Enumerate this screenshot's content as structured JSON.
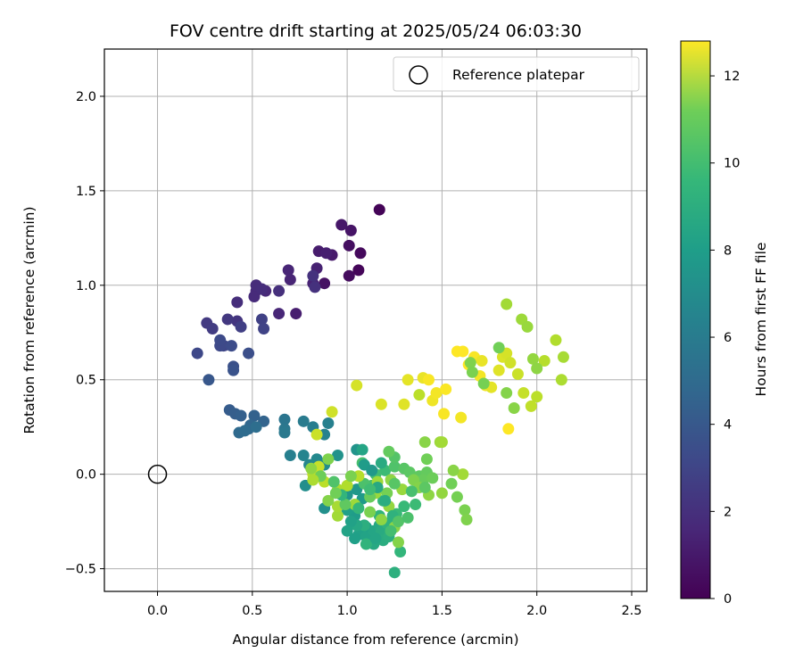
{
  "chart_data": {
    "type": "scatter",
    "title": "FOV centre drift starting at 2025/05/24 06:03:30",
    "xlabel": "Angular distance from reference (arcmin)",
    "ylabel": "Rotation from reference (arcmin)",
    "xlim": [
      -0.28,
      2.58
    ],
    "ylim": [
      -0.62,
      2.25
    ],
    "xticks": [
      0.0,
      0.5,
      1.0,
      1.5,
      2.0,
      2.5
    ],
    "xtick_labels": [
      "0.0",
      "0.5",
      "1.0",
      "1.5",
      "2.0",
      "2.5"
    ],
    "yticks": [
      -0.5,
      0.0,
      0.5,
      1.0,
      1.5,
      2.0
    ],
    "ytick_labels": [
      "−0.5",
      "0.0",
      "0.5",
      "1.0",
      "1.5",
      "2.0"
    ],
    "grid": true,
    "legend": {
      "placement": "top-right",
      "entries": [
        "Reference platepar"
      ]
    },
    "reference_point": {
      "x": 0.0,
      "y": 0.0
    },
    "colorbar": {
      "label": "Hours from first FF file",
      "colormap": "viridis",
      "range": [
        0,
        12.8
      ],
      "ticks": [
        0,
        2,
        4,
        6,
        8,
        10,
        12
      ],
      "tick_labels": [
        "0",
        "2",
        "4",
        "6",
        "8",
        "10",
        "12"
      ]
    },
    "points": [
      [
        1.17,
        1.4,
        0.1
      ],
      [
        1.06,
        1.08,
        0.2
      ],
      [
        1.07,
        1.17,
        0.3
      ],
      [
        1.01,
        1.05,
        0.4
      ],
      [
        1.01,
        1.21,
        0.5
      ],
      [
        0.88,
        1.01,
        0.6
      ],
      [
        1.02,
        1.29,
        0.7
      ],
      [
        0.97,
        1.32,
        0.8
      ],
      [
        0.92,
        1.16,
        0.9
      ],
      [
        0.85,
        1.18,
        1.0
      ],
      [
        0.73,
        0.85,
        1.05
      ],
      [
        0.89,
        1.17,
        1.1
      ],
      [
        0.84,
        1.09,
        1.2
      ],
      [
        0.82,
        1.01,
        1.25
      ],
      [
        0.7,
        1.03,
        1.3
      ],
      [
        0.69,
        1.08,
        1.35
      ],
      [
        0.64,
        0.85,
        1.4
      ],
      [
        0.57,
        0.97,
        1.45
      ],
      [
        0.52,
        0.97,
        1.5
      ],
      [
        0.51,
        0.94,
        1.55
      ],
      [
        0.52,
        1.0,
        1.6
      ],
      [
        0.55,
        0.98,
        1.65
      ],
      [
        0.42,
        0.91,
        1.7
      ],
      [
        0.64,
        0.97,
        1.75
      ],
      [
        0.83,
        0.99,
        1.8
      ],
      [
        0.82,
        1.05,
        1.85
      ],
      [
        0.42,
        0.81,
        2.0
      ],
      [
        0.37,
        0.82,
        2.1
      ],
      [
        0.26,
        0.8,
        2.2
      ],
      [
        0.29,
        0.77,
        2.3
      ],
      [
        0.44,
        0.78,
        2.4
      ],
      [
        0.55,
        0.82,
        2.5
      ],
      [
        0.56,
        0.77,
        2.6
      ],
      [
        0.35,
        0.68,
        2.7
      ],
      [
        0.21,
        0.64,
        2.8
      ],
      [
        0.33,
        0.68,
        2.85
      ],
      [
        0.33,
        0.71,
        2.9
      ],
      [
        0.39,
        0.68,
        3.0
      ],
      [
        0.48,
        0.64,
        3.1
      ],
      [
        0.4,
        0.57,
        3.2
      ],
      [
        0.4,
        0.55,
        3.3
      ],
      [
        0.27,
        0.5,
        3.5
      ],
      [
        0.38,
        0.34,
        3.7
      ],
      [
        0.41,
        0.32,
        3.8
      ],
      [
        0.44,
        0.31,
        3.9
      ],
      [
        0.51,
        0.31,
        4.0
      ],
      [
        0.56,
        0.28,
        4.1
      ],
      [
        0.49,
        0.26,
        4.2
      ],
      [
        0.48,
        0.24,
        4.3
      ],
      [
        0.43,
        0.22,
        4.4
      ],
      [
        0.46,
        0.23,
        4.5
      ],
      [
        0.52,
        0.25,
        4.6
      ],
      [
        0.67,
        0.29,
        5.0
      ],
      [
        0.67,
        0.24,
        5.1
      ],
      [
        0.67,
        0.22,
        5.2
      ],
      [
        0.77,
        0.28,
        5.3
      ],
      [
        0.82,
        0.25,
        5.4
      ],
      [
        0.7,
        0.1,
        5.5
      ],
      [
        0.9,
        0.27,
        5.6
      ],
      [
        0.88,
        0.21,
        5.7
      ],
      [
        0.77,
        0.1,
        5.8
      ],
      [
        0.8,
        0.05,
        5.9
      ],
      [
        0.84,
        0.08,
        6.0
      ],
      [
        0.82,
        0.02,
        6.1
      ],
      [
        0.88,
        0.05,
        6.2
      ],
      [
        0.78,
        -0.06,
        6.3
      ],
      [
        0.88,
        -0.18,
        6.4
      ],
      [
        0.95,
        0.1,
        6.5
      ],
      [
        1.05,
        0.13,
        6.6
      ],
      [
        1.0,
        -0.11,
        6.7
      ],
      [
        1.05,
        -0.08,
        6.8
      ],
      [
        1.08,
        -0.13,
        6.9
      ],
      [
        1.04,
        -0.22,
        7.0
      ],
      [
        1.1,
        -0.28,
        7.1
      ],
      [
        1.0,
        -0.19,
        7.2
      ],
      [
        1.06,
        -0.32,
        7.3
      ],
      [
        1.1,
        -0.33,
        7.4
      ],
      [
        1.14,
        -0.3,
        7.5
      ],
      [
        1.17,
        -0.27,
        7.6
      ],
      [
        1.14,
        -0.37,
        7.7
      ],
      [
        1.18,
        -0.3,
        7.8
      ],
      [
        1.19,
        -0.35,
        7.9
      ],
      [
        1.22,
        -0.33,
        8.0
      ],
      [
        1.25,
        -0.52,
        8.1
      ],
      [
        1.21,
        -0.26,
        8.2
      ],
      [
        1.17,
        -0.22,
        8.3
      ],
      [
        1.28,
        -0.41,
        8.4
      ],
      [
        1.19,
        -0.14,
        8.5
      ],
      [
        1.26,
        -0.21,
        8.6
      ],
      [
        1.2,
        0.02,
        8.7
      ],
      [
        1.15,
        0.0,
        8.8
      ],
      [
        1.13,
        -0.06,
        8.9
      ],
      [
        1.08,
        0.06,
        9.0
      ],
      [
        1.09,
        -0.05,
        9.1
      ],
      [
        1.25,
        0.04,
        9.2
      ],
      [
        1.25,
        0.09,
        9.3
      ],
      [
        1.3,
        0.03,
        9.4
      ],
      [
        1.33,
        0.01,
        9.5
      ],
      [
        1.38,
        -0.01,
        9.6
      ],
      [
        1.42,
        0.01,
        9.7
      ],
      [
        1.4,
        -0.03,
        9.8
      ],
      [
        1.45,
        -0.02,
        9.9
      ],
      [
        1.55,
        -0.05,
        10.0
      ],
      [
        1.58,
        -0.12,
        10.1
      ],
      [
        1.62,
        -0.19,
        10.2
      ],
      [
        1.63,
        -0.24,
        10.3
      ],
      [
        1.27,
        -0.36,
        10.4
      ],
      [
        1.25,
        -0.28,
        10.5
      ],
      [
        1.18,
        -0.24,
        10.6
      ],
      [
        1.22,
        -0.17,
        10.7
      ],
      [
        1.15,
        -0.1,
        10.8
      ],
      [
        1.04,
        -0.16,
        10.9
      ],
      [
        0.95,
        -0.22,
        11.0
      ],
      [
        0.95,
        -0.17,
        11.1
      ],
      [
        0.95,
        -0.08,
        11.2
      ],
      [
        1.0,
        -0.06,
        11.3
      ],
      [
        1.06,
        -0.01,
        11.4
      ],
      [
        0.88,
        -0.04,
        11.5
      ],
      [
        0.82,
        0.0,
        11.6
      ],
      [
        0.85,
        0.04,
        11.7
      ],
      [
        0.84,
        0.21,
        11.8
      ],
      [
        0.92,
        0.33,
        11.9
      ],
      [
        1.05,
        0.47,
        12.0
      ],
      [
        1.18,
        0.37,
        12.1
      ],
      [
        1.3,
        0.37,
        12.2
      ],
      [
        1.32,
        0.5,
        12.3
      ],
      [
        1.4,
        0.51,
        12.4
      ],
      [
        1.45,
        0.39,
        12.5
      ],
      [
        1.47,
        0.43,
        12.6
      ],
      [
        1.51,
        0.32,
        12.7
      ],
      [
        1.52,
        0.45,
        12.75
      ],
      [
        1.58,
        0.65,
        12.8
      ],
      [
        1.61,
        0.65,
        12.8
      ],
      [
        1.64,
        0.58,
        12.8
      ],
      [
        1.67,
        0.62,
        12.7
      ],
      [
        1.7,
        0.52,
        12.6
      ],
      [
        1.73,
        0.47,
        12.5
      ],
      [
        1.71,
        0.6,
        12.4
      ],
      [
        1.76,
        0.46,
        12.3
      ],
      [
        1.8,
        0.55,
        12.2
      ],
      [
        1.82,
        0.62,
        12.1
      ],
      [
        1.84,
        0.64,
        12.0
      ],
      [
        1.86,
        0.59,
        11.9
      ],
      [
        1.9,
        0.53,
        11.8
      ],
      [
        1.93,
        0.43,
        11.7
      ],
      [
        1.97,
        0.36,
        11.6
      ],
      [
        2.0,
        0.41,
        11.5
      ],
      [
        2.04,
        0.6,
        11.4
      ],
      [
        2.1,
        0.71,
        11.3
      ],
      [
        2.13,
        0.5,
        11.2
      ],
      [
        2.14,
        0.62,
        11.1
      ],
      [
        1.84,
        0.9,
        11.0
      ],
      [
        1.92,
        0.82,
        10.9
      ],
      [
        1.95,
        0.78,
        10.8
      ],
      [
        1.98,
        0.61,
        10.7
      ],
      [
        2.0,
        0.56,
        10.6
      ],
      [
        1.88,
        0.35,
        10.5
      ],
      [
        1.84,
        0.43,
        10.4
      ],
      [
        1.65,
        0.59,
        10.3
      ],
      [
        1.66,
        0.54,
        10.2
      ],
      [
        1.72,
        0.48,
        10.1
      ],
      [
        1.8,
        0.67,
        10.0
      ],
      [
        1.85,
        0.24,
        12.8
      ],
      [
        1.6,
        0.3,
        12.6
      ],
      [
        1.43,
        0.5,
        12.7
      ],
      [
        1.38,
        0.42,
        11.5
      ],
      [
        1.41,
        0.17,
        10.5
      ],
      [
        1.49,
        0.17,
        10.9
      ],
      [
        1.5,
        0.17,
        11.0
      ],
      [
        1.42,
        0.08,
        10.0
      ],
      [
        1.35,
        -0.03,
        10.3
      ],
      [
        1.38,
        -0.07,
        10.4
      ],
      [
        1.43,
        -0.11,
        10.6
      ],
      [
        1.5,
        -0.1,
        10.7
      ],
      [
        1.61,
        0.0,
        11.0
      ],
      [
        1.56,
        0.02,
        10.5
      ],
      [
        1.29,
        -0.08,
        10.8
      ],
      [
        1.23,
        -0.03,
        10.6
      ],
      [
        1.21,
        -0.1,
        10.1
      ],
      [
        1.16,
        -0.04,
        10.9
      ],
      [
        1.12,
        -0.2,
        10.2
      ],
      [
        1.12,
        -0.12,
        9.8
      ],
      [
        1.09,
        -0.27,
        8.0
      ],
      [
        1.05,
        -0.27,
        7.6
      ],
      [
        1.02,
        -0.25,
        7.3
      ],
      [
        0.99,
        -0.16,
        9.6
      ],
      [
        0.97,
        -0.11,
        8.4
      ],
      [
        0.93,
        -0.04,
        9.2
      ],
      [
        0.9,
        0.08,
        10.3
      ],
      [
        0.86,
        -0.01,
        9.9
      ],
      [
        0.81,
        0.03,
        10.6
      ],
      [
        0.82,
        -0.03,
        11.2
      ],
      [
        0.9,
        -0.14,
        10.4
      ],
      [
        0.94,
        -0.1,
        10.0
      ],
      [
        1.02,
        -0.01,
        10.2
      ],
      [
        1.08,
        0.13,
        7.5
      ],
      [
        1.09,
        0.05,
        7.0
      ],
      [
        1.13,
        0.02,
        6.8
      ],
      [
        1.16,
        -0.07,
        7.7
      ],
      [
        1.2,
        -0.14,
        7.9
      ],
      [
        1.24,
        -0.22,
        8.2
      ],
      [
        1.3,
        -0.17,
        8.6
      ],
      [
        1.34,
        -0.09,
        9.0
      ],
      [
        1.25,
        -0.05,
        9.4
      ],
      [
        1.22,
        0.12,
        9.7
      ],
      [
        1.18,
        0.06,
        7.8
      ],
      [
        1.12,
        -0.08,
        8.8
      ],
      [
        1.06,
        -0.18,
        8.5
      ],
      [
        1.0,
        -0.3,
        7.4
      ],
      [
        1.04,
        -0.34,
        7.2
      ],
      [
        1.1,
        -0.37,
        8.3
      ],
      [
        1.15,
        -0.34,
        7.5
      ],
      [
        1.23,
        -0.3,
        8.9
      ],
      [
        1.27,
        -0.25,
        9.3
      ],
      [
        1.32,
        -0.23,
        9.1
      ],
      [
        1.36,
        -0.16,
        8.7
      ],
      [
        1.41,
        -0.07,
        9.5
      ]
    ]
  }
}
